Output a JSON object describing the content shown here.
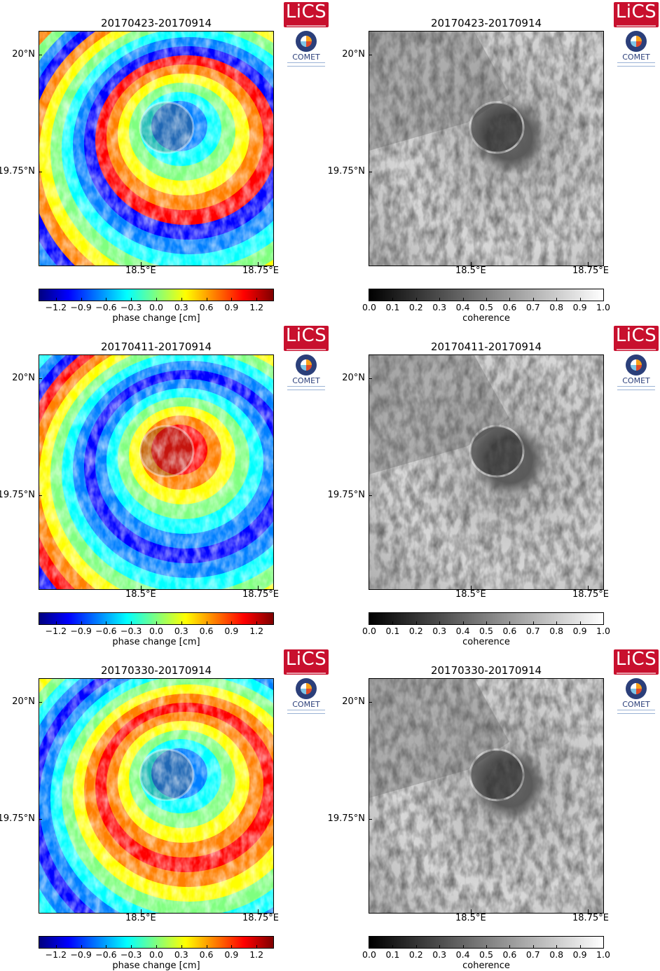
{
  "panels": [
    {
      "title": "20170423-20170914",
      "kind": "phase"
    },
    {
      "title": "20170423-20170914",
      "kind": "coherence"
    },
    {
      "title": "20170411-20170914",
      "kind": "phase"
    },
    {
      "title": "20170411-20170914",
      "kind": "coherence"
    },
    {
      "title": "20170330-20170914",
      "kind": "phase"
    },
    {
      "title": "20170330-20170914",
      "kind": "coherence"
    }
  ],
  "axes": {
    "y_ticks": [
      "20°N",
      "19.75°N"
    ],
    "x_ticks": [
      "18.5°E",
      "18.75°E"
    ]
  },
  "phase_colorbar": {
    "label": "phase change [cm]",
    "ticks": [
      "−1.2",
      "−0.9",
      "−0.6",
      "−0.3",
      "0.0",
      "0.3",
      "0.6",
      "0.9",
      "1.2"
    ],
    "range": [
      -1.4,
      1.4
    ],
    "colormap": [
      "#00007f",
      "#0000ff",
      "#007fff",
      "#00ffff",
      "#7fff7f",
      "#ffff00",
      "#ff7f00",
      "#ff0000",
      "#7f0000"
    ]
  },
  "coherence_colorbar": {
    "label": "coherence",
    "ticks": [
      "0.0",
      "0.1",
      "0.2",
      "0.3",
      "0.4",
      "0.5",
      "0.6",
      "0.7",
      "0.8",
      "0.9",
      "1.0"
    ],
    "range": [
      0.0,
      1.0
    ],
    "colormap": [
      "#000000",
      "#ffffff"
    ]
  },
  "logos": {
    "lics": "LiCS",
    "comet": "COMET"
  }
}
